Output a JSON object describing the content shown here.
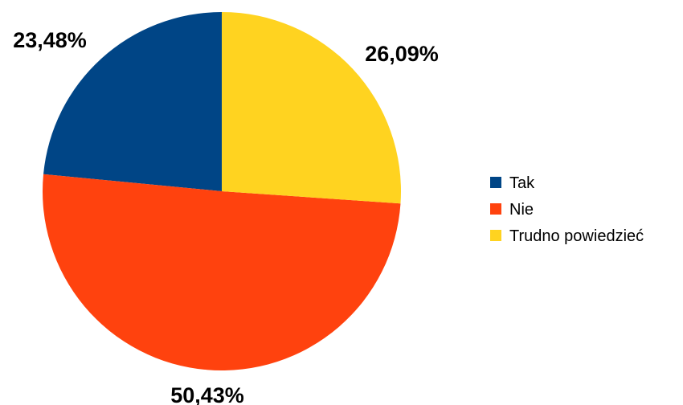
{
  "chart_data": {
    "type": "pie",
    "categories": [
      "Tak",
      "Nie",
      "Trudno powiedzieć"
    ],
    "values": [
      23.48,
      50.43,
      26.09
    ],
    "value_labels": [
      "23,48%",
      "50,43%",
      "26,09%"
    ],
    "colors": [
      "#004586",
      "#ff420e",
      "#ffd320"
    ],
    "start_angle_deg": 0,
    "direction": "counterclockwise",
    "legend": {
      "position": "right",
      "entries": [
        "Tak",
        "Nie",
        "Trudno powiedzieć"
      ]
    }
  }
}
